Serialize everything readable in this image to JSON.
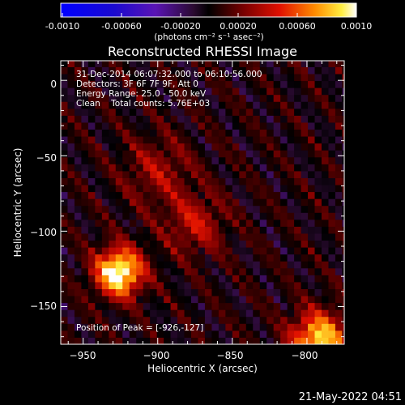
{
  "colorbar": {
    "ticks": [
      "-0.0010",
      "-0.00060",
      "-0.00020",
      "0.00020",
      "0.00060",
      "0.0010"
    ],
    "unit_label": "(photons cm⁻² s⁻¹ asec⁻²)"
  },
  "info": {
    "line1": "31-Dec-2014 06:07:32.000 to 06:10:56.000",
    "line2": "Detectors: 3F 6F 7F 9F, Att 0",
    "line3": "Energy Range: 25.0 - 50.0 keV",
    "line4": "Clean    Total counts: 5.76E+03"
  },
  "peak_label": "Position of Peak = [-926,-127]",
  "footer_date": "21-May-2022 04:51",
  "chart_data": {
    "type": "heatmap",
    "title": "Reconstructed RHESSI Image",
    "xlabel": "Heliocentric X (arcsec)",
    "ylabel": "Heliocentric Y (arcsec)",
    "xlim": [
      -965,
      -775
    ],
    "ylim": [
      -175,
      13
    ],
    "xticks": [
      -950,
      -900,
      -850,
      -800
    ],
    "yticks": [
      0,
      -50,
      -100,
      -150
    ],
    "x_tick_labels": [
      "−950",
      "−900",
      "−850",
      "−800"
    ],
    "y_tick_labels": [
      "0",
      "−50",
      "−100",
      "−150"
    ],
    "colorbar_range": [
      -0.001,
      0.001
    ],
    "peak_position": [
      -926,
      -127
    ],
    "sources": [
      {
        "x": -926,
        "y": -127,
        "amplitude": 0.00105,
        "sigma": 11
      },
      {
        "x": -792,
        "y": -172,
        "amplitude": 0.00085,
        "sigma": 13
      },
      {
        "x": -875,
        "y": -95,
        "amplitude": 0.00035,
        "sigma": 14
      },
      {
        "x": -900,
        "y": -60,
        "amplitude": 0.00028,
        "sigma": 16
      }
    ],
    "background": "ringing pattern, approx -0.0003 to 0.0004"
  }
}
